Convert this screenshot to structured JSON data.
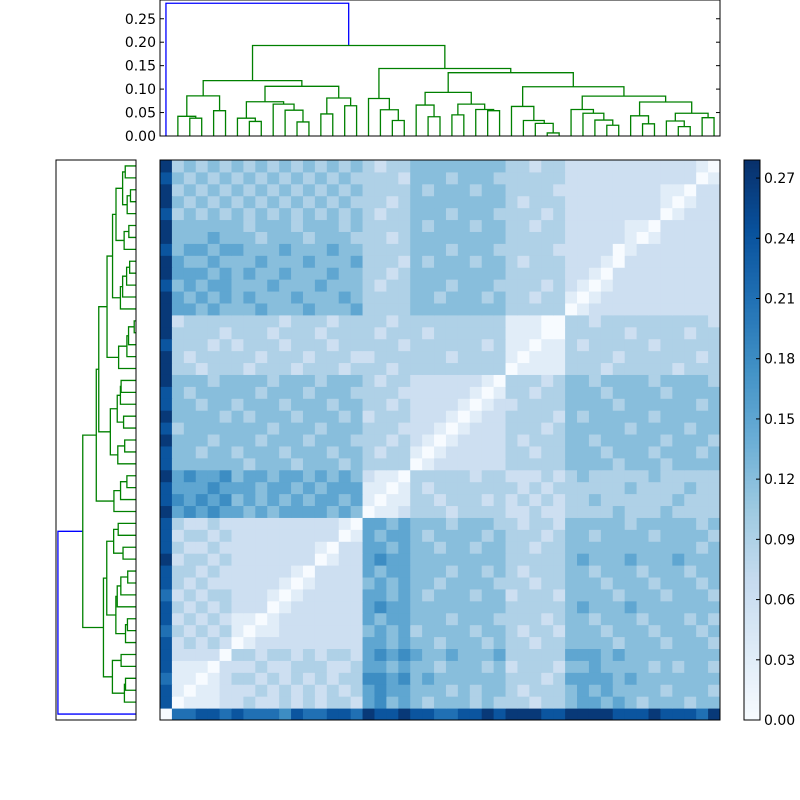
{
  "chart_data": {
    "type": "heatmap",
    "title": "",
    "description_of_encoding": "matrix_levels rows are digit strings; value = digit * level_step",
    "n_leaves": 47,
    "level_step": 0.03,
    "vmin": 0.0,
    "vmax": 0.279,
    "colormap": [
      "#f7fbff",
      "#deebf7",
      "#c6dbef",
      "#9ecae1",
      "#6baed6",
      "#4292c6",
      "#2171b5",
      "#08519c",
      "#08306b"
    ],
    "matrix_levels": [
      "07788787776877887988988778898999889999888988879",
      "80111223223232332564543444343332334554543444344",
      "81011222323232323565544434344323334545444434443",
      "71101233232323233665645444444333235555454444444",
      "81110222322333223554544344434233324454444343443",
      "82222033233232332565654454445333335554544444444",
      "82323201222222222554544344434332334444344434443",
      "73232310112222222454534444344323324443444344434",
      "82323211012222222545544434443333234434443444343",
      "83232322201222222565544444444333334544454444444",
      "72323322210122222554543444344233324444344434443",
      "83232222221012222454544344443332334443444344434",
      "83323222222102222545544434434323334434443444344",
      "92332322222220122565544444444333334544454445444",
      "83223222222221022554544344344332334444444444434",
      "82332322222222201545543444434333234434444344443",
      "83223222222222210554544434443323324444434444434",
      "95656554545555454011233323333223223333433343333",
      "86565645454545545101133233323232323343333334333",
      "85556555455454555110132333333323233333343333433",
      "95655645545545454211033333233222323433333433333",
      "84444443444344434333301222222333334444344434444",
      "84434434443444344323310122222332334443444344434",
      "94443444344434443332321012222323334434444434443",
      "83444444434443444333222101222333234444434444344",
      "94444343444344434233322210122333324344444344444",
      "84434434443444344332322221012233334444344444434",
      "84344444344434443333222222101332334443444434444",
      "94443444434443444323322222210333234434444344443",
      "93323332333233323332333333333011113332333332333",
      "93233333233323332233333323333101113333233333323",
      "83332323332333233333233333323110113233333233333",
      "93333233323332333323332333333111003333323333233",
      "92333333332333233332333333333111003323333333332",
      "95545444544454445333344444444333330122222222222",
      "95454545444544454333344344434332331012222222222",
      "84545544454445444323344434443333232101222222222",
      "95554545445444544332344444444333332210222222222",
      "95445444544454445333243444344323332221022222222",
      "84554554445444544333344434443333322222012222222",
      "94445444344434443332344444444333332222210122222",
      "94444443444344434333343444344332332222211022222",
      "83434343434343434323344434443333232222222201222",
      "94343434343434343332344444444323332222222210122",
      "93434343434343434333343444344333322222222211022",
      "84343434343434343333244434443333332222222222201",
      "93434343434343434323344444444332332222222222210"
    ],
    "dendrogram": {
      "root_color": "#0000ff",
      "link_color": "#008000",
      "tree": [
        0.283,
        0,
        [
          0.193,
          [
            0.118,
            [
              0.0855,
              [
                0.042,
                1,
                [
                  0.038,
                  2,
                  3
                ]
              ],
              [
                0.054,
                4,
                5
              ]
            ],
            [
              0.106,
              [
                0.073,
                [
                  0.038,
                  6,
                  [
                    0.031,
                    7,
                    8
                  ]
                ],
                [
                  0.068,
                  9,
                  [
                    0.055,
                    10,
                    [
                      0.03,
                      11,
                      12
                    ]
                  ]
                ]
              ],
              [
                0.081,
                [
                  0.047,
                  13,
                  14
                ],
                [
                  0.0645,
                  15,
                  16
                ]
              ]
            ]
          ],
          [
            0.144,
            [
              0.08,
              17,
              [
                0.056,
                18,
                [
                  0.033,
                  19,
                  20
                ]
              ]
            ],
            [
              0.135,
              [
                0.093,
                [
                  0.066,
                  21,
                  [
                    0.041,
                    22,
                    23
                  ]
                ],
                [
                  0.068,
                  [
                    0.045,
                    24,
                    25
                  ],
                  [
                    0.0565,
                    26,
                    [
                      0.054,
                      27,
                      28
                    ]
                  ]
                ]
              ],
              [
                0.105,
                [
                  0.063,
                  29,
                  [
                    0.033,
                    30,
                    [
                      0.027,
                      31,
                      [
                        0.0065,
                        32,
                        33
                      ]
                    ]
                  ]
                ],
                [
                  0.085,
                  [
                    0.0565,
                    34,
                    [
                      0.0485,
                      35,
                      [
                        0.034,
                        36,
                        [
                          0.023,
                          37,
                          38
                        ]
                      ]
                    ]
                  ],
                  [
                    0.0725,
                    [
                      0.043,
                      39,
                      [
                        0.026,
                        40,
                        41
                      ]
                    ],
                    [
                      0.0485,
                      [
                        0.032,
                        42,
                        [
                          0.02,
                          43,
                          44
                        ]
                      ],
                      [
                        0.039,
                        45,
                        46
                      ]
                    ]
                  ]
                ]
              ]
            ]
          ]
        ]
      ],
      "height_range": [
        0.0,
        0.29
      ],
      "height_ticks": [
        0.0,
        0.05,
        0.1,
        0.15,
        0.2,
        0.25
      ],
      "height_tick_labels": [
        "0.00",
        "0.05",
        "0.10",
        "0.15",
        "0.20",
        "0.25"
      ]
    },
    "colorbar": {
      "ticks": [
        0.0,
        0.03,
        0.06,
        0.09,
        0.12,
        0.15,
        0.18,
        0.21,
        0.24,
        0.27
      ],
      "tick_labels": [
        "0.00",
        "0.03",
        "0.06",
        "0.09",
        "0.12",
        "0.15",
        "0.18",
        "0.21",
        "0.24",
        "0.27"
      ]
    }
  }
}
